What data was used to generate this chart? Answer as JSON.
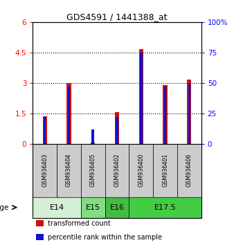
{
  "title": "GDS4591 / 1441388_at",
  "samples": [
    "GSM936403",
    "GSM936404",
    "GSM936405",
    "GSM936402",
    "GSM936400",
    "GSM936401",
    "GSM936406"
  ],
  "transformed_counts": [
    1.35,
    3.0,
    0.05,
    1.55,
    4.65,
    2.9,
    3.15
  ],
  "percentile_ranks_scaled": [
    1.32,
    2.82,
    0.72,
    1.32,
    4.5,
    2.82,
    3.0
  ],
  "age_groups": [
    {
      "label": "E14",
      "start": 0,
      "end": 2,
      "color": "#d4efd4"
    },
    {
      "label": "E15",
      "start": 2,
      "end": 3,
      "color": "#80dd80"
    },
    {
      "label": "E16",
      "start": 3,
      "end": 4,
      "color": "#44bb44"
    },
    {
      "label": "E17.5",
      "start": 4,
      "end": 7,
      "color": "#44cc44"
    }
  ],
  "ylim_left": [
    0,
    6
  ],
  "ylim_right": [
    0,
    100
  ],
  "yticks_left": [
    0,
    1.5,
    3.0,
    4.5,
    6.0
  ],
  "yticks_left_labels": [
    "0",
    "1.5",
    "3",
    "4.5",
    "6"
  ],
  "yticks_right": [
    0,
    25,
    50,
    75,
    100
  ],
  "yticks_right_labels": [
    "0",
    "25",
    "50",
    "75",
    "100%"
  ],
  "bar_color_red": "#cc1111",
  "bar_color_blue": "#1111cc",
  "red_bar_width": 0.18,
  "blue_bar_width": 0.1,
  "sample_box_color": "#cccccc",
  "background_color": "#ffffff"
}
